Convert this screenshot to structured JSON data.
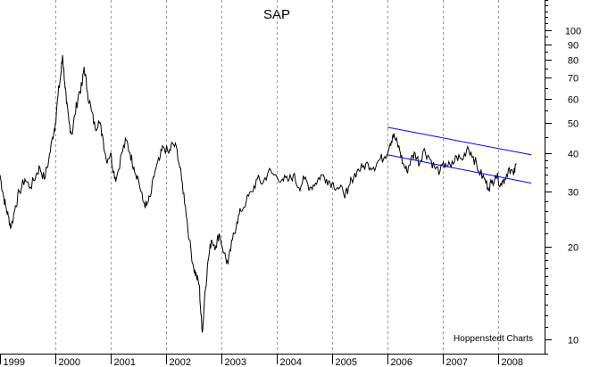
{
  "chart_data": {
    "type": "line",
    "title": "SAP",
    "credit": "Hoppenstedt Charts",
    "x_tick_labels": [
      "1999",
      "2000",
      "2001",
      "2002",
      "2003",
      "2004",
      "2005",
      "2006",
      "2007",
      "2008"
    ],
    "y_scale": "log",
    "ylim": [
      9,
      125
    ],
    "y_tick_labels": [
      "10",
      "20",
      "30",
      "40",
      "50",
      "60",
      "70",
      "80",
      "90",
      "100"
    ],
    "grid": "vertical dashed at year boundaries",
    "colors": {
      "price_line": "#000000",
      "channel": "#0000ff",
      "grid": "#9a9a9a"
    },
    "series": [
      {
        "values": [
          [
            1999.0,
            34
          ],
          [
            1999.05,
            30
          ],
          [
            1999.1,
            27
          ],
          [
            1999.15,
            25
          ],
          [
            1999.2,
            23
          ],
          [
            1999.28,
            27
          ],
          [
            1999.35,
            30
          ],
          [
            1999.45,
            33
          ],
          [
            1999.55,
            31
          ],
          [
            1999.65,
            34
          ],
          [
            1999.72,
            36
          ],
          [
            1999.8,
            33
          ],
          [
            1999.88,
            38
          ],
          [
            1999.95,
            45
          ],
          [
            2000.0,
            50
          ],
          [
            2000.05,
            62
          ],
          [
            2000.1,
            72
          ],
          [
            2000.13,
            83
          ],
          [
            2000.17,
            68
          ],
          [
            2000.2,
            58
          ],
          [
            2000.25,
            50
          ],
          [
            2000.3,
            46
          ],
          [
            2000.35,
            53
          ],
          [
            2000.42,
            62
          ],
          [
            2000.48,
            66
          ],
          [
            2000.52,
            76
          ],
          [
            2000.58,
            63
          ],
          [
            2000.65,
            55
          ],
          [
            2000.72,
            48
          ],
          [
            2000.78,
            51
          ],
          [
            2000.85,
            46
          ],
          [
            2000.92,
            38
          ],
          [
            2001.0,
            40
          ],
          [
            2001.05,
            35
          ],
          [
            2001.1,
            33
          ],
          [
            2001.2,
            40
          ],
          [
            2001.28,
            44
          ],
          [
            2001.35,
            40
          ],
          [
            2001.42,
            36
          ],
          [
            2001.5,
            33
          ],
          [
            2001.58,
            28
          ],
          [
            2001.65,
            27
          ],
          [
            2001.72,
            29
          ],
          [
            2001.8,
            35
          ],
          [
            2001.88,
            38
          ],
          [
            2001.95,
            42
          ],
          [
            2002.05,
            40
          ],
          [
            2002.12,
            43
          ],
          [
            2002.2,
            41
          ],
          [
            2002.28,
            33
          ],
          [
            2002.35,
            27
          ],
          [
            2002.42,
            21
          ],
          [
            2002.5,
            17
          ],
          [
            2002.55,
            16
          ],
          [
            2002.6,
            15
          ],
          [
            2002.63,
            12
          ],
          [
            2002.66,
            10.6
          ],
          [
            2002.7,
            14
          ],
          [
            2002.76,
            18
          ],
          [
            2002.82,
            21
          ],
          [
            2002.9,
            20
          ],
          [
            2002.96,
            22
          ],
          [
            2003.05,
            19
          ],
          [
            2003.12,
            17.5
          ],
          [
            2003.2,
            21
          ],
          [
            2003.28,
            24
          ],
          [
            2003.35,
            26
          ],
          [
            2003.45,
            28
          ],
          [
            2003.55,
            30
          ],
          [
            2003.65,
            33
          ],
          [
            2003.75,
            32
          ],
          [
            2003.85,
            35
          ],
          [
            2003.95,
            34
          ],
          [
            2004.1,
            33
          ],
          [
            2004.2,
            32.5
          ],
          [
            2004.3,
            34
          ],
          [
            2004.4,
            31
          ],
          [
            2004.5,
            33
          ],
          [
            2004.6,
            31
          ],
          [
            2004.7,
            32
          ],
          [
            2004.8,
            34
          ],
          [
            2004.9,
            33
          ],
          [
            2005.0,
            32
          ],
          [
            2005.1,
            31
          ],
          [
            2005.2,
            30
          ],
          [
            2005.28,
            29.5
          ],
          [
            2005.35,
            33
          ],
          [
            2005.45,
            35
          ],
          [
            2005.55,
            36
          ],
          [
            2005.65,
            37
          ],
          [
            2005.75,
            36
          ],
          [
            2005.85,
            38
          ],
          [
            2005.95,
            39
          ],
          [
            2006.05,
            43
          ],
          [
            2006.1,
            46
          ],
          [
            2006.15,
            44
          ],
          [
            2006.22,
            41
          ],
          [
            2006.28,
            37
          ],
          [
            2006.35,
            35
          ],
          [
            2006.42,
            38
          ],
          [
            2006.5,
            40
          ],
          [
            2006.58,
            37
          ],
          [
            2006.65,
            41
          ],
          [
            2006.75,
            39
          ],
          [
            2006.85,
            36
          ],
          [
            2006.95,
            35
          ],
          [
            2007.05,
            37
          ],
          [
            2007.15,
            36
          ],
          [
            2007.25,
            39
          ],
          [
            2007.35,
            38
          ],
          [
            2007.45,
            42
          ],
          [
            2007.55,
            39
          ],
          [
            2007.65,
            35
          ],
          [
            2007.75,
            33
          ],
          [
            2007.82,
            31
          ],
          [
            2007.88,
            32
          ],
          [
            2007.95,
            34
          ],
          [
            2008.05,
            32
          ],
          [
            2008.12,
            33
          ],
          [
            2008.2,
            36
          ],
          [
            2008.28,
            34
          ],
          [
            2008.33,
            37
          ]
        ]
      },
      {
        "type": "trendline",
        "values": [
          [
            2006.0,
            39.5
          ],
          [
            2008.6,
            32.0
          ]
        ]
      },
      {
        "type": "trendline",
        "values": [
          [
            2006.0,
            48.5
          ],
          [
            2008.6,
            39.5
          ]
        ]
      }
    ]
  }
}
